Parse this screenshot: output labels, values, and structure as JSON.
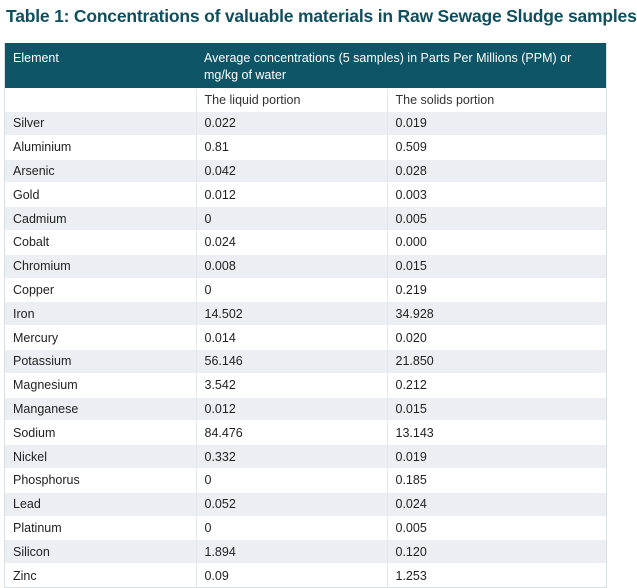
{
  "title": "Table 1: Concentrations of valuable materials in Raw Sewage Sludge samples",
  "header": {
    "col1": "Element",
    "col2": "Average concentrations (5 samples) in Parts Per Millions (PPM) or mg/kg of water"
  },
  "subheader": {
    "liquid": "The liquid portion",
    "solids": "The solids portion"
  },
  "rows": [
    {
      "element": "Silver",
      "liquid": "0.022",
      "solids": "0.019"
    },
    {
      "element": "Aluminium",
      "liquid": "0.81",
      "solids": "0.509"
    },
    {
      "element": "Arsenic",
      "liquid": "0.042",
      "solids": "0.028"
    },
    {
      "element": "Gold",
      "liquid": "0.012",
      "solids": "0.003"
    },
    {
      "element": "Cadmium",
      "liquid": "0",
      "solids": "0.005"
    },
    {
      "element": "Cobalt",
      "liquid": "0.024",
      "solids": "0.000"
    },
    {
      "element": "Chromium",
      "liquid": "0.008",
      "solids": "0.015"
    },
    {
      "element": "Copper",
      "liquid": "0",
      "solids": "0.219"
    },
    {
      "element": "Iron",
      "liquid": "14.502",
      "solids": "34.928"
    },
    {
      "element": "Mercury",
      "liquid": "0.014",
      "solids": "0.020"
    },
    {
      "element": "Potassium",
      "liquid": "56.146",
      "solids": "21.850"
    },
    {
      "element": "Magnesium",
      "liquid": "3.542",
      "solids": "0.212"
    },
    {
      "element": "Manganese",
      "liquid": "0.012",
      "solids": "0.015"
    },
    {
      "element": "Sodium",
      "liquid": "84.476",
      "solids": "13.143"
    },
    {
      "element": "Nickel",
      "liquid": "0.332",
      "solids": "0.019"
    },
    {
      "element": "Phosphorus",
      "liquid": "0",
      "solids": "0.185"
    },
    {
      "element": "Lead",
      "liquid": "0.052",
      "solids": "0.024"
    },
    {
      "element": "Platinum",
      "liquid": "0",
      "solids": "0.005"
    },
    {
      "element": "Silicon",
      "liquid": "1.894",
      "solids": "0.120"
    },
    {
      "element": "Zinc",
      "liquid": "0.09",
      "solids": "1.253"
    }
  ]
}
